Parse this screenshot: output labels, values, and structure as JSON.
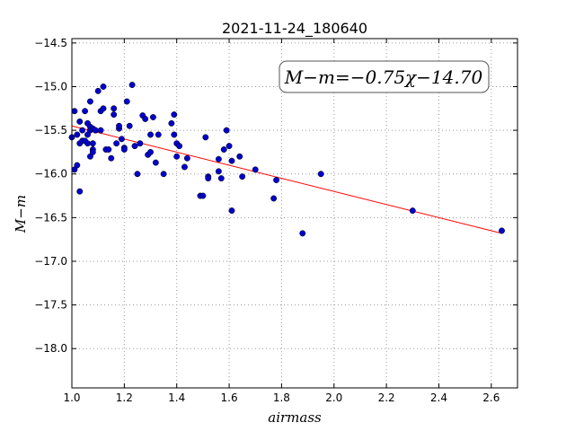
{
  "chart_data": {
    "type": "scatter",
    "title": "2021-11-24_180640",
    "xlabel": "airmass",
    "ylabel": "M−m",
    "annotation": "M−m=−0.75χ−14.70",
    "xlim": [
      1.0,
      2.7
    ],
    "ylim": [
      -18.45,
      -14.45
    ],
    "x_ticks": [
      "1.0",
      "1.2",
      "1.4",
      "1.6",
      "1.8",
      "2.0",
      "2.2",
      "2.4",
      "2.6"
    ],
    "y_ticks": [
      "−14.5",
      "−15.0",
      "−15.5",
      "−16.0",
      "−16.5",
      "−17.0",
      "−17.5",
      "−18.0"
    ],
    "x_tick_values": [
      1.0,
      1.2,
      1.4,
      1.6,
      1.8,
      2.0,
      2.2,
      2.4,
      2.6
    ],
    "y_tick_values": [
      -14.5,
      -15.0,
      -15.5,
      -16.0,
      -16.5,
      -17.0,
      -17.5,
      -18.0
    ],
    "grid": true,
    "fit_line": {
      "slope": -0.75,
      "intercept": -14.7,
      "x_range": [
        1.0,
        2.64
      ],
      "color": "#ff0000"
    },
    "marker_color": "#0000cc",
    "x": [
      1.0,
      1.01,
      1.01,
      1.02,
      1.02,
      1.03,
      1.03,
      1.03,
      1.04,
      1.04,
      1.05,
      1.05,
      1.06,
      1.06,
      1.06,
      1.07,
      1.07,
      1.07,
      1.07,
      1.08,
      1.08,
      1.08,
      1.08,
      1.09,
      1.09,
      1.1,
      1.11,
      1.11,
      1.12,
      1.12,
      1.13,
      1.14,
      1.15,
      1.16,
      1.16,
      1.17,
      1.18,
      1.18,
      1.19,
      1.2,
      1.2,
      1.21,
      1.22,
      1.23,
      1.24,
      1.25,
      1.26,
      1.27,
      1.28,
      1.29,
      1.3,
      1.3,
      1.31,
      1.32,
      1.33,
      1.35,
      1.38,
      1.39,
      1.39,
      1.4,
      1.4,
      1.41,
      1.43,
      1.44,
      1.49,
      1.5,
      1.51,
      1.52,
      1.52,
      1.56,
      1.56,
      1.57,
      1.58,
      1.59,
      1.6,
      1.61,
      1.61,
      1.64,
      1.65,
      1.7,
      1.77,
      1.78,
      1.88,
      1.95,
      2.3,
      2.64
    ],
    "y": [
      -15.58,
      -15.28,
      -15.95,
      -15.9,
      -15.55,
      -16.2,
      -15.4,
      -15.65,
      -15.5,
      -15.62,
      -15.28,
      -15.62,
      -15.42,
      -15.55,
      -15.65,
      -15.17,
      -15.5,
      -15.8,
      -15.46,
      -15.72,
      -15.75,
      -15.48,
      -15.65,
      -15.5,
      -15.5,
      -15.05,
      -15.28,
      -15.5,
      -15.0,
      -15.25,
      -15.72,
      -15.72,
      -15.82,
      -15.25,
      -15.32,
      -15.65,
      -15.48,
      -15.45,
      -15.6,
      -15.7,
      -15.72,
      -15.17,
      -15.45,
      -14.98,
      -15.68,
      -16.0,
      -15.65,
      -15.33,
      -15.37,
      -15.78,
      -15.55,
      -15.75,
      -15.35,
      -15.87,
      -15.55,
      -16.0,
      -15.42,
      -15.55,
      -15.32,
      -15.65,
      -15.8,
      -15.68,
      -15.92,
      -15.82,
      -16.25,
      -16.25,
      -15.58,
      -16.03,
      -16.05,
      -15.97,
      -15.83,
      -16.05,
      -15.72,
      -15.5,
      -15.68,
      -15.85,
      -16.42,
      -15.8,
      -16.03,
      -15.95,
      -16.28,
      -16.07,
      -16.68,
      -16.0,
      -16.42,
      -16.65
    ]
  }
}
